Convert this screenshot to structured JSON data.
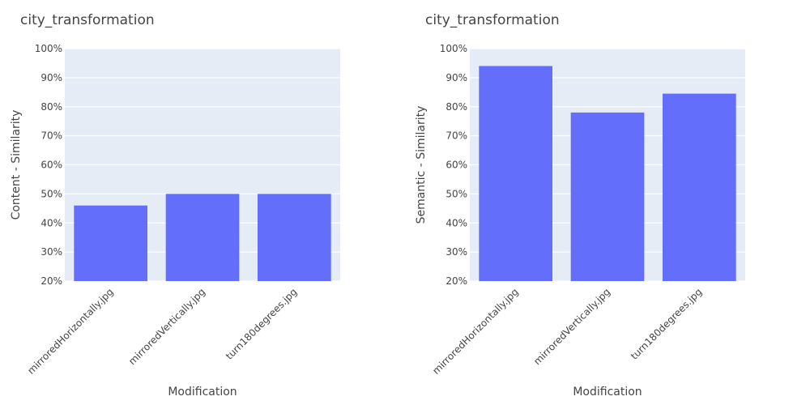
{
  "chart_data": [
    {
      "type": "bar",
      "title": "city_transformation",
      "xlabel": "Modification",
      "ylabel": "Content - Similarity",
      "categories": [
        "mirroredHorizontally.jpg",
        "mirroredVertically.jpg",
        "turn180degrees.jpg"
      ],
      "values": [
        0.46,
        0.5,
        0.5
      ],
      "ylim": [
        0.2,
        1.0
      ],
      "y_ticks": [
        "20%",
        "30%",
        "40%",
        "50%",
        "60%",
        "70%",
        "80%",
        "90%",
        "100%"
      ],
      "y_tick_values": [
        0.2,
        0.3,
        0.4,
        0.5,
        0.6,
        0.7,
        0.8,
        0.9,
        1.0
      ],
      "grid": true,
      "bar_color": "#636efa",
      "plot_background": "#e5ecf6"
    },
    {
      "type": "bar",
      "title": "city_transformation",
      "xlabel": "Modification",
      "ylabel": "Semantic - Similarity",
      "categories": [
        "mirroredHorizontally.jpg",
        "mirroredVertically.jpg",
        "turn180degrees.jpg"
      ],
      "values": [
        0.94,
        0.78,
        0.845
      ],
      "ylim": [
        0.2,
        1.0
      ],
      "y_ticks": [
        "20%",
        "30%",
        "40%",
        "50%",
        "60%",
        "70%",
        "80%",
        "90%",
        "100%"
      ],
      "y_tick_values": [
        0.2,
        0.3,
        0.4,
        0.5,
        0.6,
        0.7,
        0.8,
        0.9,
        1.0
      ],
      "grid": true,
      "bar_color": "#636efa",
      "plot_background": "#e5ecf6"
    }
  ]
}
